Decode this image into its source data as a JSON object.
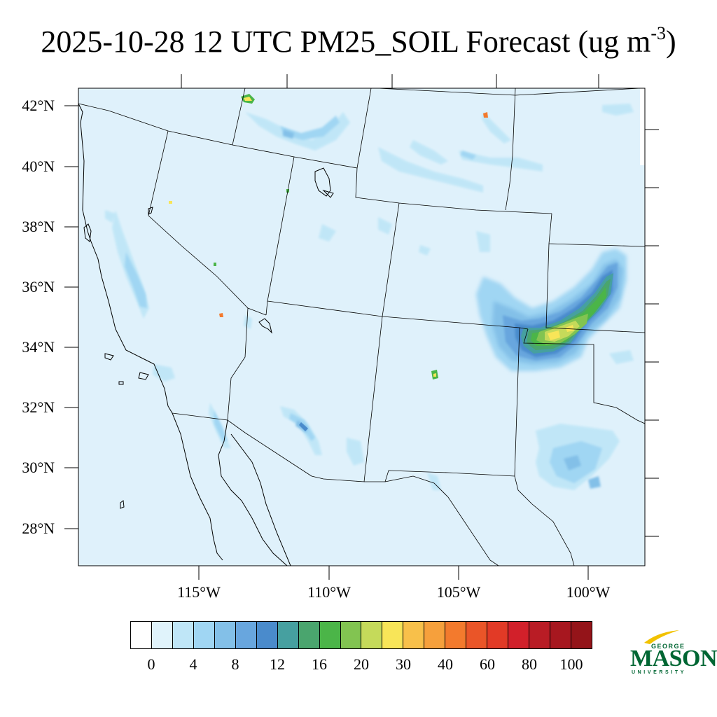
{
  "title": {
    "main": "2025-10-28 12 UTC PM25_SOIL Forecast (ug m",
    "superscript": "-3",
    "close": ")"
  },
  "map": {
    "background_color": "#dff1fb",
    "lat_labels": [
      "42°N",
      "40°N",
      "38°N",
      "36°N",
      "34°N",
      "32°N",
      "30°N",
      "28°N"
    ],
    "lon_labels": [
      "115°W",
      "110°W",
      "105°W",
      "100°W"
    ]
  },
  "colorbar": {
    "colors": [
      "#ffffff",
      "#e0f3fb",
      "#bfe6f7",
      "#a0d6f3",
      "#83c0e8",
      "#68a6de",
      "#4a8bcc",
      "#46a0a0",
      "#4aa56e",
      "#4bb548",
      "#82c451",
      "#c5da5a",
      "#f8e558",
      "#f8c04a",
      "#f6a03c",
      "#f37a2d",
      "#ea5528",
      "#e23a26",
      "#d2202a",
      "#b91c25",
      "#a7171f",
      "#941419"
    ],
    "labels": [
      "0",
      "4",
      "8",
      "12",
      "16",
      "20",
      "30",
      "40",
      "60",
      "80",
      "100"
    ]
  },
  "logo": {
    "line1": "GEORGE",
    "line2": "MASON",
    "line3": "UNIVERSITY",
    "color": "#006633",
    "accent": "#f2c200"
  }
}
